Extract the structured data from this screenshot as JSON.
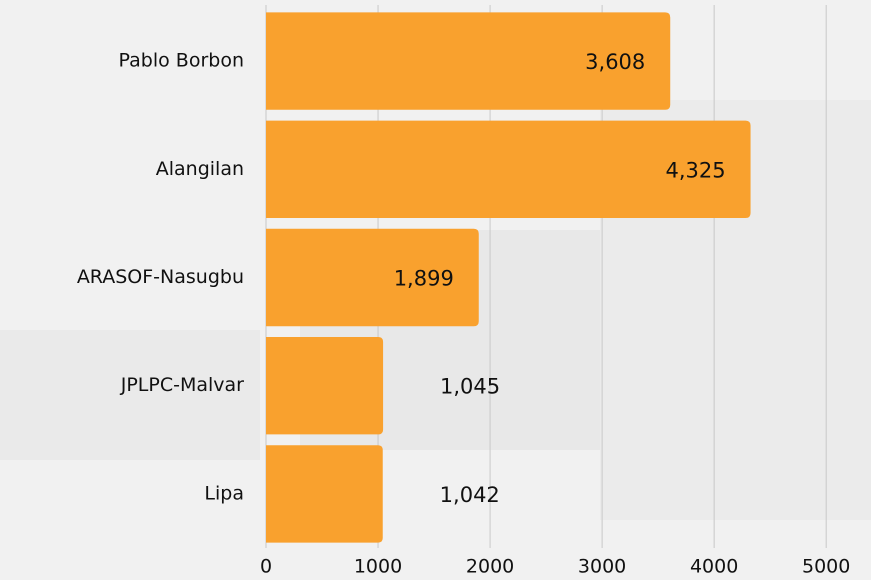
{
  "chart_data": {
    "type": "bar",
    "orientation": "horizontal",
    "categories": [
      "Pablo Borbon",
      "Alangilan",
      "ARASOF-Nasugbu",
      "JPLPC-Malvar",
      "Lipa"
    ],
    "values": [
      3608,
      4325,
      1899,
      1045,
      1042
    ],
    "value_labels": [
      "3,608",
      "4,325",
      "1,899",
      "1,045",
      "1,042"
    ],
    "color": "#f9a12e",
    "xlim": [
      0,
      5400
    ],
    "xticks": [
      0,
      1000,
      2000,
      3000,
      4000,
      5000
    ],
    "grid": true
  }
}
